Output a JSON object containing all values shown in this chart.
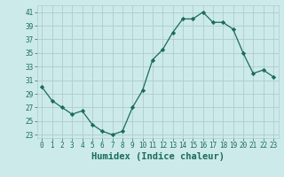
{
  "x": [
    0,
    1,
    2,
    3,
    4,
    5,
    6,
    7,
    8,
    9,
    10,
    11,
    12,
    13,
    14,
    15,
    16,
    17,
    18,
    19,
    20,
    21,
    22,
    23
  ],
  "y": [
    30,
    28,
    27,
    26,
    26.5,
    24.5,
    23.5,
    23,
    23.5,
    27,
    29.5,
    34,
    35.5,
    38,
    40,
    40,
    41,
    39.5,
    39.5,
    38.5,
    35,
    32,
    32.5,
    31.5
  ],
  "line_color": "#1a6b5a",
  "marker": "D",
  "marker_size": 2.2,
  "bg_color": "#cceaea",
  "grid_color": "#b0cccc",
  "xlabel": "Humidex (Indice chaleur)",
  "xlabel_color": "#1a6b5a",
  "tick_color": "#1a6b5a",
  "xlim": [
    -0.5,
    23.5
  ],
  "ylim": [
    22.5,
    42
  ],
  "yticks": [
    23,
    25,
    27,
    29,
    31,
    33,
    35,
    37,
    39,
    41
  ],
  "xticks": [
    0,
    1,
    2,
    3,
    4,
    5,
    6,
    7,
    8,
    9,
    10,
    11,
    12,
    13,
    14,
    15,
    16,
    17,
    18,
    19,
    20,
    21,
    22,
    23
  ],
  "tick_fontsize": 5.5,
  "xlabel_fontsize": 7.5
}
